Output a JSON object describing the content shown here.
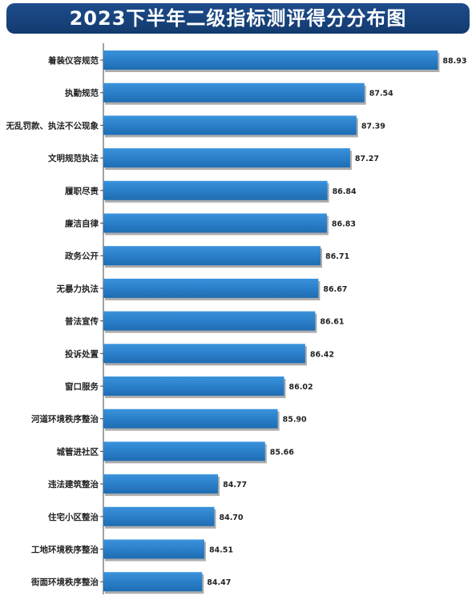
{
  "title": "2023下半年二级指标测评得分分布图",
  "colors": {
    "banner": "#1e4d8c",
    "bar": "#2a7fc9",
    "bar_shadow": "#8a8a8a",
    "axis": "#444444"
  },
  "chart_data": {
    "type": "bar",
    "orientation": "horizontal",
    "title": "2023下半年二级指标测评得分分布图",
    "categories": [
      "着装仪容规范",
      "执勤规范",
      "无乱罚款、执法不公现象",
      "文明规范执法",
      "履职尽责",
      "廉洁自律",
      "政务公开",
      "无暴力执法",
      "普法宣传",
      "投诉处置",
      "窗口服务",
      "河道环境秩序整治",
      "城管进社区",
      "违法建筑整治",
      "住宅小区整治",
      "工地环境秩序整治",
      "街面环境秩序整治"
    ],
    "values": [
      88.93,
      87.54,
      87.39,
      87.27,
      86.84,
      86.83,
      86.71,
      86.67,
      86.61,
      86.42,
      86.02,
      85.9,
      85.66,
      84.77,
      84.7,
      84.51,
      84.47
    ],
    "value_labels": [
      "88.93",
      "87.54",
      "87.39",
      "87.27",
      "86.84",
      "86.83",
      "86.71",
      "86.67",
      "86.61",
      "86.42",
      "86.02",
      "85.90",
      "85.66",
      "84.77",
      "84.70",
      "84.51",
      "84.47"
    ],
    "xlim": [
      82.6,
      89.0
    ],
    "grid": false,
    "legend": "none"
  }
}
